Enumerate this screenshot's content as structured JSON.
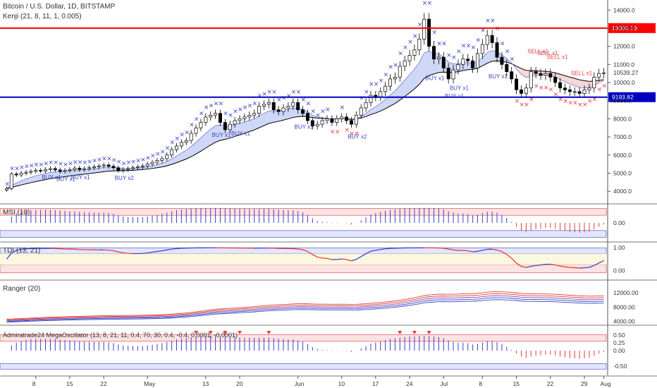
{
  "header": {
    "symbol": "Bitcoin / U.S. Dollar, 1D, BITSTAMP",
    "study": "Kenji (21, 8, 11, 1, 0.005)"
  },
  "colors": {
    "up": "#ffffff",
    "down": "#000000",
    "wick": "#000000",
    "resistance": "#ff0000",
    "support": "#0000c0",
    "ema": "#000000",
    "cloud_bull": "#c9d3f5",
    "cloud_bear": "#f6d2d2",
    "buy": "#3a42c8",
    "sell": "#e43a3a",
    "blue_line": "#3a42c8",
    "red_line": "#e43a3a"
  },
  "chart_data": [
    {
      "type": "candlestick",
      "name": "price",
      "yticks": [
        4000,
        5000,
        6000,
        7000,
        8000,
        9000,
        10000,
        11000,
        12000,
        13000,
        14000
      ],
      "ylim": [
        3500,
        14400
      ],
      "hlines": [
        {
          "value": 13005.19,
          "label": "13005.19",
          "color": "#ff0000"
        },
        {
          "value": 9193.82,
          "label": "9193.82",
          "color": "#0000c0"
        }
      ],
      "last_label": "10539.27",
      "x_ticks": [
        {
          "i": 6,
          "label": "8"
        },
        {
          "i": 13,
          "label": "15"
        },
        {
          "i": 20,
          "label": "22"
        },
        {
          "i": 29,
          "label": "May"
        },
        {
          "i": 41,
          "label": "13"
        },
        {
          "i": 48,
          "label": "20"
        },
        {
          "i": 60,
          "label": "Jun"
        },
        {
          "i": 69,
          "label": "10"
        },
        {
          "i": 76,
          "label": "17"
        },
        {
          "i": 83,
          "label": "24"
        },
        {
          "i": 90,
          "label": "Jul"
        },
        {
          "i": 98,
          "label": "8"
        },
        {
          "i": 105,
          "label": "15"
        },
        {
          "i": 112,
          "label": "22"
        },
        {
          "i": 119,
          "label": "29"
        },
        {
          "i": 123,
          "label": "Aug"
        }
      ],
      "closes": [
        4150,
        4950,
        4900,
        5000,
        5050,
        5100,
        5150,
        5120,
        5200,
        5250,
        5180,
        5100,
        5150,
        5200,
        5280,
        5200,
        5250,
        5300,
        5350,
        5400,
        5450,
        5380,
        5300,
        5150,
        5200,
        5250,
        5300,
        5350,
        5400,
        5500,
        5600,
        5700,
        5800,
        6000,
        6300,
        6500,
        6700,
        6800,
        7200,
        7500,
        7800,
        8100,
        8200,
        8300,
        7800,
        7400,
        7700,
        7900,
        8000,
        8100,
        8200,
        8300,
        8700,
        8800,
        8900,
        8500,
        8400,
        8600,
        8700,
        8900,
        8500,
        8300,
        7900,
        7600,
        7700,
        7900,
        8000,
        7800,
        8000,
        8100,
        7900,
        7700,
        8200,
        8600,
        8900,
        9300,
        9200,
        9500,
        9800,
        10200,
        10300,
        10900,
        11200,
        11500,
        11800,
        12400,
        13500,
        12000,
        11300,
        11400,
        10800,
        10200,
        10700,
        11000,
        11300,
        11200,
        10800,
        11600,
        12100,
        12600,
        12200,
        11400,
        11000,
        10600,
        10200,
        9600,
        9400,
        9700,
        10600,
        10500,
        10400,
        10500,
        10300,
        10000,
        9700,
        9600,
        9500,
        9500,
        9400,
        9600,
        9700,
        10300,
        10500,
        10539
      ],
      "signals": [
        {
          "i": 9,
          "text": "BUY x1",
          "kind": "buy"
        },
        {
          "i": 12,
          "text": "BUY x1",
          "kind": "buy"
        },
        {
          "i": 15,
          "text": "BUY x1",
          "kind": "buy"
        },
        {
          "i": 24,
          "text": "BUY x2",
          "kind": "buy"
        },
        {
          "i": 44,
          "text": "BUY x1",
          "kind": "buy"
        },
        {
          "i": 48,
          "text": "BUY x1",
          "kind": "buy"
        },
        {
          "i": 61,
          "text": "BUY x1",
          "kind": "buy"
        },
        {
          "i": 72,
          "text": "BUY x2",
          "kind": "buy"
        },
        {
          "i": 88,
          "text": "BUY x1",
          "kind": "buy"
        },
        {
          "i": 92,
          "text": "BUY x1",
          "kind": "buy"
        },
        {
          "i": 93,
          "text": "BUY x1",
          "kind": "buy"
        },
        {
          "i": 101,
          "text": "BUY x1",
          "kind": "buy"
        },
        {
          "i": 109,
          "text": "SELL x1",
          "kind": "sell"
        },
        {
          "i": 111,
          "text": "SELL x1",
          "kind": "sell"
        },
        {
          "i": 113,
          "text": "SELL x1",
          "kind": "sell"
        },
        {
          "i": 118,
          "text": "SELL x1",
          "kind": "sell"
        }
      ]
    },
    {
      "type": "bar",
      "name": "MSI (10)",
      "yticks": [
        0.0
      ],
      "tick_labels": [
        "0.00"
      ],
      "ylim": [
        -1,
        1
      ]
    },
    {
      "type": "line",
      "name": "TDI (13, 21)",
      "yticks": [
        1.0,
        0.0
      ],
      "tick_labels": [
        "1.00",
        "0.00"
      ],
      "ylim": [
        -0.3,
        1.1
      ]
    },
    {
      "type": "line",
      "name": "Ranger (20)",
      "yticks": [
        12000,
        8000,
        4000
      ],
      "tick_labels": [
        "12000.00",
        "8000.00",
        "4000.00"
      ],
      "ylim": [
        3500,
        15000
      ]
    },
    {
      "type": "bar",
      "name": "Admiratrade24 MegaOscillator (13, 8, 21, 11, 0.4, 70, 30, 0.4, -0.4, 0.0001, -0.0001)",
      "yticks": [
        0.5,
        0.25,
        0.0,
        -0.5
      ],
      "tick_labels": [
        "0.50",
        "0.25",
        "0.00",
        "-0.50"
      ],
      "ylim": [
        -0.75,
        0.75
      ]
    }
  ]
}
